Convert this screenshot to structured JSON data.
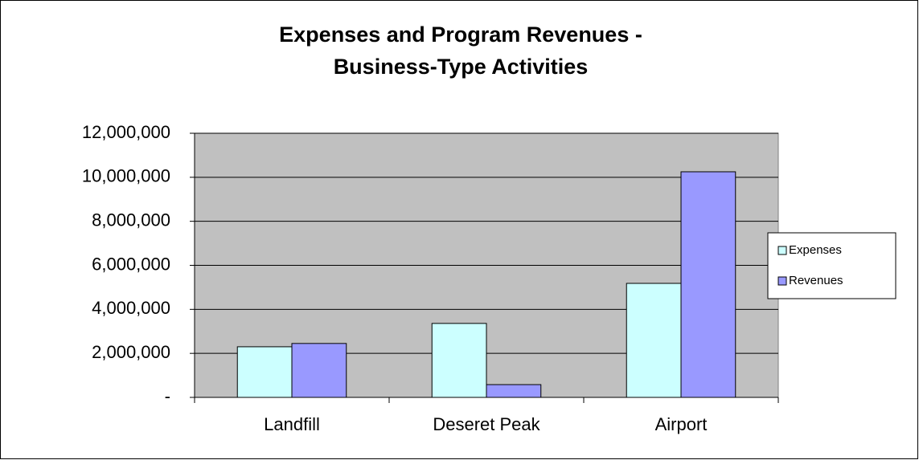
{
  "chart_data": {
    "type": "bar",
    "title": "Expenses and Program Revenues -",
    "subtitle": "Business-Type Activities",
    "categories": [
      "Landfill",
      "Deseret Peak",
      "Airport"
    ],
    "series": [
      {
        "name": "Expenses",
        "color": "#ccffff",
        "values": [
          2300000,
          3360000,
          5180000
        ]
      },
      {
        "name": "Revenues",
        "color": "#9999ff",
        "values": [
          2450000,
          580000,
          10250000
        ]
      }
    ],
    "ylim": [
      0,
      12000000
    ],
    "yticks": [
      {
        "value": 0,
        "label": "-"
      },
      {
        "value": 2000000,
        "label": "2,000,000"
      },
      {
        "value": 4000000,
        "label": "4,000,000"
      },
      {
        "value": 6000000,
        "label": "6,000,000"
      },
      {
        "value": 8000000,
        "label": "8,000,000"
      },
      {
        "value": 10000000,
        "label": "10,000,000"
      },
      {
        "value": 12000000,
        "label": "12,000,000"
      }
    ],
    "grid": true,
    "legend": "right",
    "plot_background": "#c0c0c0"
  }
}
